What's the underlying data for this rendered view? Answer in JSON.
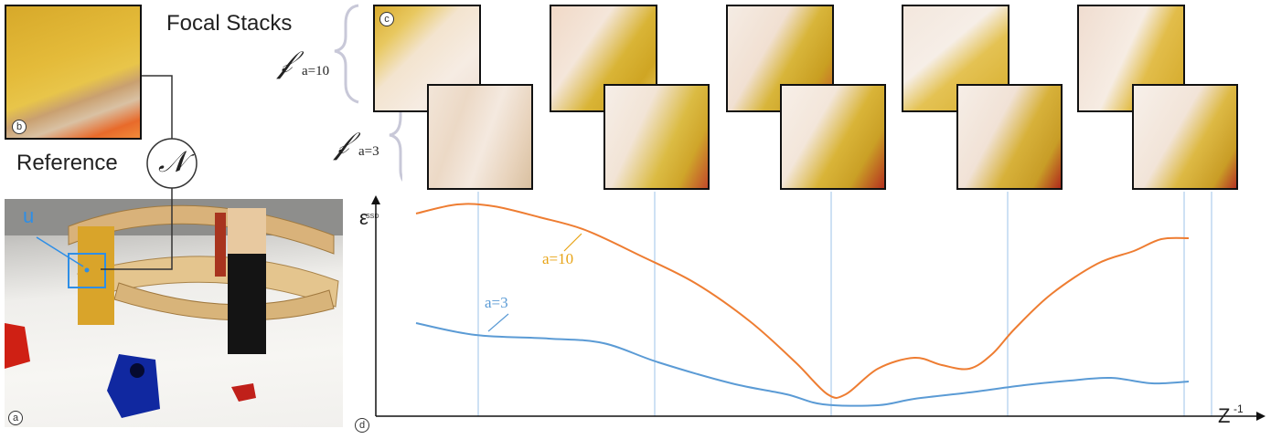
{
  "labels": {
    "focal_stacks": "Focal Stacks",
    "reference": "Reference",
    "n_symbol": "𝒩",
    "b_marker": "b",
    "c_marker": "c",
    "a_marker": "a",
    "d_marker": "d",
    "u_label": "u",
    "f_script": "𝒻",
    "stack_a10_sub": "a=10",
    "stack_a3_sub": "a=3",
    "y_axis_symbol": "ε",
    "y_axis_sub": "SSD",
    "x_axis_label": "Z",
    "x_axis_sup": "-1",
    "curve_a10": "a=10",
    "curve_a3": "a=3"
  },
  "colors": {
    "orange_curve": "#ee7d32",
    "blue_curve": "#5b9bd5",
    "orange_label": "#e8a417",
    "blue_label": "#5b9bd5",
    "guide_line": "#9cc3ea",
    "bracket": "#c8c8d8"
  },
  "chart_data": {
    "type": "line",
    "xlabel": "Z^-1",
    "ylabel": "ε_SSD",
    "series": [
      {
        "name": "a=10",
        "color": "#ee7d32",
        "points": [
          [
            455,
            234
          ],
          [
            500,
            224
          ],
          [
            540,
            226
          ],
          [
            590,
            238
          ],
          [
            640,
            252
          ],
          [
            700,
            280
          ],
          [
            760,
            310
          ],
          [
            820,
            352
          ],
          [
            870,
            397
          ],
          [
            905,
            432
          ],
          [
            925,
            432
          ],
          [
            960,
            404
          ],
          [
            1000,
            392
          ],
          [
            1030,
            400
          ],
          [
            1060,
            404
          ],
          [
            1085,
            388
          ],
          [
            1110,
            360
          ],
          [
            1150,
            322
          ],
          [
            1200,
            289
          ],
          [
            1240,
            275
          ],
          [
            1270,
            262
          ],
          [
            1300,
            261
          ]
        ]
      },
      {
        "name": "a=3",
        "color": "#5b9bd5",
        "points": [
          [
            455,
            354
          ],
          [
            520,
            367
          ],
          [
            600,
            371
          ],
          [
            660,
            376
          ],
          [
            720,
            397
          ],
          [
            800,
            420
          ],
          [
            860,
            432
          ],
          [
            900,
            443
          ],
          [
            960,
            444
          ],
          [
            1000,
            437
          ],
          [
            1060,
            430
          ],
          [
            1120,
            422
          ],
          [
            1170,
            417
          ],
          [
            1215,
            414
          ],
          [
            1260,
            420
          ],
          [
            1300,
            418
          ]
        ]
      }
    ],
    "guides_x": [
      523,
      716,
      909,
      1102,
      1295,
      1325
    ]
  }
}
